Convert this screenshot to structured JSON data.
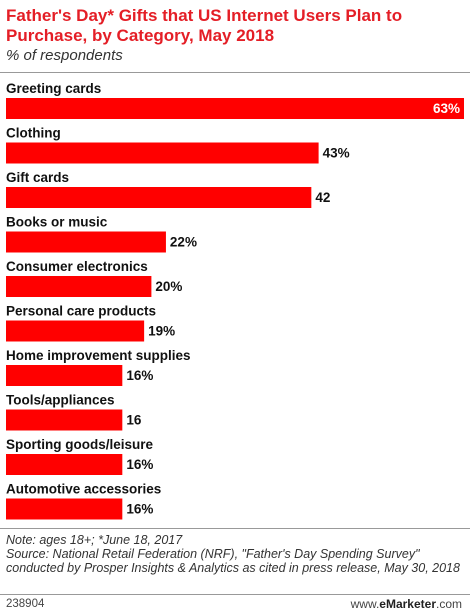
{
  "header": {
    "title": "Father's Day* Gifts that US Internet Users Plan to Purchase, by Category, May 2018",
    "subtitle": "% of respondents"
  },
  "chart_data": {
    "type": "bar",
    "orientation": "horizontal",
    "title": "Father's Day* Gifts that US Internet Users Plan to Purchase, by Category, May 2018",
    "subtitle": "% of respondents",
    "categories": [
      "Greeting cards",
      "Clothing",
      "Gift cards",
      "Books or music",
      "Consumer electronics",
      "Personal care products",
      "Home improvement supplies",
      "Tools/appliances",
      "Sporting goods/leisure",
      "Automotive accessories"
    ],
    "values": [
      63,
      43,
      42,
      22,
      20,
      19,
      16,
      16,
      16,
      16
    ],
    "value_labels": [
      "63%",
      "43%",
      "42",
      "22%",
      "20%",
      "19%",
      "16%",
      "16",
      "16%",
      "16%"
    ],
    "xlim": [
      0,
      63
    ],
    "bar_color": "#ff0000",
    "grid": false,
    "legend": "none"
  },
  "notes": {
    "note": "Note: ages 18+; *June 18, 2017",
    "source": "Source: National Retail Federation (NRF), \"Father's Day Spending Survey\" conducted by Prosper Insights & Analytics as cited in press release, May 30, 2018"
  },
  "footer": {
    "id": "238904",
    "brand_prefix": "www.",
    "brand_name": "eMarketer",
    "brand_suffix": ".com"
  }
}
